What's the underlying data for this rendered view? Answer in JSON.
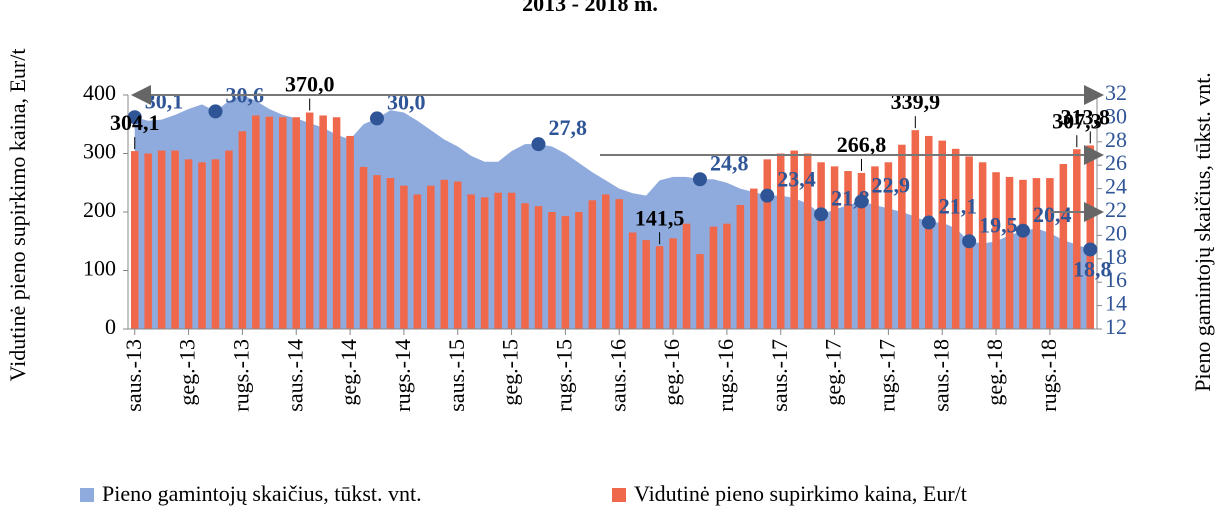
{
  "chart_data": {
    "type": "bar_area",
    "title": "2013 - 2018 m.",
    "y_label": "Vidutinė pieno supirkimo kaina, Eur/t",
    "y2_label": "Pieno gamintojų skaičius, tūkst. vnt.",
    "categories": [
      "saus.-13",
      null,
      null,
      null,
      "geg.-13",
      null,
      null,
      null,
      "rugs.-13",
      null,
      null,
      null,
      "saus.-14",
      null,
      null,
      null,
      "geg.-14",
      null,
      null,
      null,
      "rugs.-14",
      null,
      null,
      null,
      "saus.-15",
      null,
      null,
      null,
      "geg.-15",
      null,
      null,
      null,
      "rugs.-15",
      null,
      null,
      null,
      "saus.-16",
      null,
      null,
      null,
      "geg.-16",
      null,
      null,
      null,
      "rugs.-16",
      null,
      null,
      null,
      "saus.-17",
      null,
      null,
      null,
      "geg.-17",
      null,
      null,
      null,
      "rugs.-17",
      null,
      null,
      null,
      "saus.-18",
      null,
      null,
      null,
      "geg.-18",
      null,
      null,
      null,
      "rugs.-18",
      null,
      null,
      null
    ],
    "series": [
      {
        "name": "Pieno gamintojų skaičius, tūkst. vnt.",
        "type": "area",
        "axis": "y2",
        "color": "#8faadc",
        "point_color": "#2f5597",
        "values": [
          30.1,
          29.8,
          29.9,
          30.3,
          30.8,
          31.2,
          30.6,
          31.5,
          32,
          31.5,
          30.8,
          30.3,
          30,
          29.6,
          29.2,
          28.6,
          28.2,
          29.5,
          30.0,
          30.7,
          30.5,
          29.8,
          29,
          28.2,
          27.6,
          26.8,
          26.3,
          26.3,
          27.2,
          27.8,
          27.8,
          27.6,
          27,
          26.2,
          25.4,
          24.7,
          24,
          23.6,
          23.4,
          24.7,
          25,
          25,
          24.8,
          24.8,
          24.5,
          24,
          23.7,
          23.4,
          23.4,
          23.2,
          22.7,
          21.8,
          22.2,
          22.6,
          22.9,
          22.6,
          22.3,
          22,
          21.6,
          21.1,
          21.1,
          20.6,
          19.5,
          19.3,
          19.5,
          20,
          20.4,
          20.6,
          20.2,
          19.6,
          19.2,
          18.8
        ],
        "value_labels": [
          "30,1",
          null,
          null,
          null,
          null,
          null,
          "30,6",
          null,
          null,
          null,
          null,
          null,
          null,
          null,
          null,
          null,
          null,
          null,
          "30,0",
          null,
          null,
          null,
          null,
          null,
          null,
          null,
          null,
          null,
          null,
          null,
          "27,8",
          null,
          null,
          null,
          null,
          null,
          null,
          null,
          null,
          null,
          null,
          null,
          "24,8",
          null,
          null,
          null,
          null,
          "23,4",
          null,
          null,
          null,
          "21,8",
          null,
          null,
          "22,9",
          null,
          null,
          null,
          null,
          "21,1",
          null,
          null,
          "19,5",
          null,
          null,
          null,
          "20,4",
          null,
          null,
          null,
          null,
          "18,8"
        ]
      },
      {
        "name": "Vidutinė pieno supirkimo kaina, Eur/t",
        "type": "bar",
        "axis": "y",
        "color": "#f0684c",
        "values": [
          304.1,
          300,
          305,
          305,
          290,
          285,
          290,
          305,
          338,
          365,
          363,
          362,
          362,
          370,
          365,
          362,
          330,
          277,
          263,
          258,
          245,
          230,
          245,
          255,
          252,
          230,
          225,
          233,
          233,
          215,
          210,
          200,
          193,
          200,
          220,
          230,
          222,
          165,
          152,
          141.5,
          155,
          180,
          128,
          175,
          180,
          212,
          240,
          290,
          300,
          305,
          300,
          285,
          278,
          270,
          266.8,
          278,
          285,
          315,
          339.9,
          330,
          322,
          308,
          295,
          285,
          268,
          260,
          255,
          258,
          258,
          282,
          307.3,
          313.8
        ],
        "value_labels": [
          "304,1",
          null,
          null,
          null,
          null,
          null,
          null,
          null,
          null,
          null,
          null,
          null,
          null,
          "370,0",
          null,
          null,
          null,
          null,
          null,
          null,
          null,
          null,
          null,
          null,
          null,
          null,
          null,
          null,
          null,
          null,
          null,
          null,
          null,
          null,
          null,
          null,
          null,
          null,
          null,
          "141,5",
          null,
          null,
          null,
          null,
          null,
          null,
          null,
          null,
          null,
          null,
          null,
          null,
          null,
          null,
          "266,8",
          null,
          null,
          null,
          "339,9",
          null,
          null,
          null,
          null,
          null,
          null,
          null,
          null,
          null,
          null,
          null,
          "307,3",
          "313,8"
        ]
      }
    ],
    "ylim": [
      0,
      400
    ],
    "yticks": [
      0,
      100,
      200,
      300,
      400
    ],
    "y2lim": [
      12,
      32
    ],
    "y2ticks": [
      12,
      14,
      16,
      18,
      20,
      22,
      24,
      26,
      28,
      30,
      32
    ],
    "legend": "bottom"
  }
}
